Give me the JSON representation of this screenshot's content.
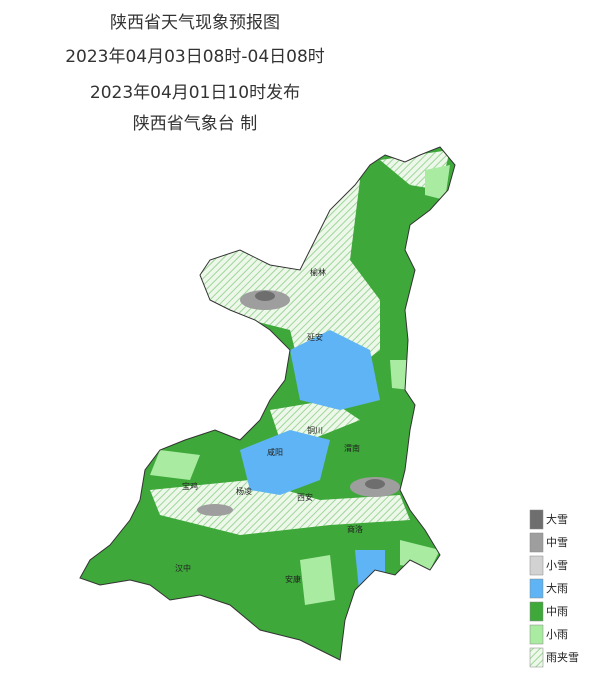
{
  "header": {
    "title": "陕西省天气现象预报图",
    "period": "2023年04月03日08时-04日08时",
    "issued": "2023年04月01日10时发布",
    "agency": "陕西省气象台 制"
  },
  "legend": {
    "items": [
      {
        "label": "大雪",
        "color": "#6e6e6e"
      },
      {
        "label": "中雪",
        "color": "#9e9e9e"
      },
      {
        "label": "小雪",
        "color": "#d2d2d2"
      },
      {
        "label": "大雨",
        "color": "#5fb4f5"
      },
      {
        "label": "中雨",
        "color": "#3ea83a"
      },
      {
        "label": "小雨",
        "color": "#a9eca1"
      },
      {
        "label": "雨夹雪",
        "color": "hatch"
      }
    ]
  },
  "cities": [
    {
      "label": "榆林"
    },
    {
      "label": "延安"
    },
    {
      "label": "铜川"
    },
    {
      "label": "咸阳"
    },
    {
      "label": "渭南"
    },
    {
      "label": "宝鸡"
    },
    {
      "label": "杨凌"
    },
    {
      "label": "西安"
    },
    {
      "label": "商洛"
    },
    {
      "label": "汉中"
    },
    {
      "label": "安康"
    }
  ]
}
